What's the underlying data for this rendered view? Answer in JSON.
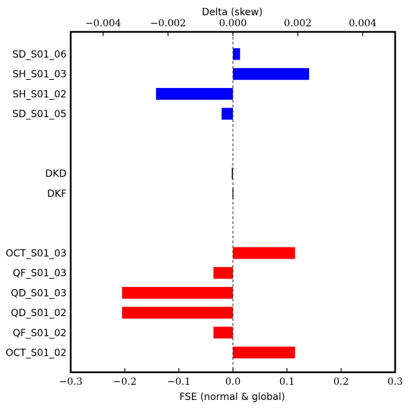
{
  "chart_data": {
    "type": "bar",
    "orientation": "horizontal",
    "xlabel": "FSE (normal & global)",
    "x2label": "Delta (skew)",
    "xlim": [
      -0.3,
      0.3
    ],
    "x2lim": [
      -0.005,
      0.005
    ],
    "xticks": [
      "−0.3",
      "−0.2",
      "−0.1",
      "0.0",
      "0.1",
      "0.2",
      "0.3"
    ],
    "xtick_values": [
      -0.3,
      -0.2,
      -0.1,
      0.0,
      0.1,
      0.2,
      0.3
    ],
    "x2ticks": [
      "−0.004",
      "−0.002",
      "0.000",
      "0.002",
      "0.004"
    ],
    "x2tick_values": [
      -0.004,
      -0.002,
      0.0,
      0.002,
      0.004
    ],
    "grid": false,
    "reference_line": {
      "x": 0,
      "style": "dashed"
    },
    "groups": [
      {
        "axis": "top",
        "color": "#0000ff",
        "bars": [
          {
            "label": "SD_S01_06",
            "value": 0.00022
          },
          {
            "label": "SH_S01_03",
            "value": 0.00235
          },
          {
            "label": "SH_S01_02",
            "value": -0.00237
          },
          {
            "label": "SD_S01_05",
            "value": -0.00035
          }
        ]
      },
      {
        "axis": "bottom",
        "color": "#000000",
        "bars": [
          {
            "label": "DKD",
            "value": -0.002
          },
          {
            "label": "DKF",
            "value": -0.001
          }
        ]
      },
      {
        "axis": "bottom",
        "color": "#ff0000",
        "bars": [
          {
            "label": "OCT_S01_03",
            "value": 0.115
          },
          {
            "label": "QF_S01_03",
            "value": -0.036
          },
          {
            "label": "QD_S01_03",
            "value": -0.205
          },
          {
            "label": "QD_S01_02",
            "value": -0.205
          },
          {
            "label": "QF_S01_02",
            "value": -0.036
          },
          {
            "label": "OCT_S01_02",
            "value": 0.115
          }
        ]
      }
    ]
  }
}
